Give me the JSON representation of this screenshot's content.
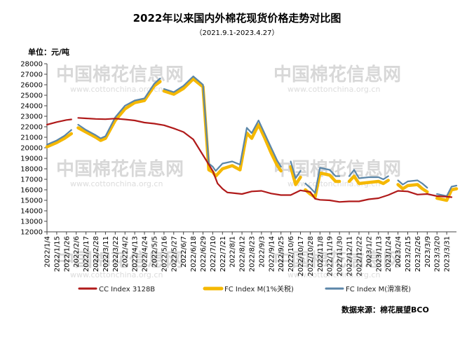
{
  "chart_data": {
    "type": "line",
    "title": "2022年以来国内外棉花现货价格走势对比图",
    "subtitle": "（2021.9.1-2023.4.27）",
    "unit_label": "单位：元/吨",
    "source": "数据来源：棉花展望BCO",
    "watermark": {
      "cn": "中国棉花信息网",
      "url": "www.cottonchina.org.cn"
    },
    "ylim": [
      12000,
      28000
    ],
    "y_ticks": [
      12000,
      13000,
      14000,
      15000,
      16000,
      17000,
      18000,
      19000,
      20000,
      21000,
      22000,
      23000,
      24000,
      25000,
      26000,
      27000,
      28000
    ],
    "x_tick_labels": [
      "2022/1/4",
      "2022/1/15",
      "2022/1/26",
      "2022/2/6",
      "2022/2/17",
      "2022/2/28",
      "2022/3/11",
      "2022/3/22",
      "2022/4/2",
      "2022/4/13",
      "2022/4/24",
      "2022/5/5",
      "2022/5/16",
      "2022/5/27",
      "2022/6/7",
      "2022/6/18",
      "2022/6/29",
      "2022/7/10",
      "2022/7/21",
      "2022/8/1",
      "2022/8/12",
      "2022/8/23",
      "2022/9/3",
      "2022/9/14",
      "2022/9/25",
      "2022/10/6",
      "2022/10/17",
      "2022/10/28",
      "2022/11/8",
      "2022/11/19",
      "2022/11/30",
      "2022/12/11",
      "2022/12/22",
      "2023/1/2",
      "2023/1/13",
      "2023/1/24",
      "2023/2/4",
      "2023/2/15",
      "2023/2/26",
      "2023/3/9",
      "2023/3/20",
      "2023/3/31"
    ],
    "x_end_index": 42,
    "legend_position": "bottom",
    "series": [
      {
        "name": "CC Index 3128B",
        "color": "#b01a1a",
        "points": [
          [
            0,
            22200
          ],
          [
            1,
            22450
          ],
          [
            2,
            22650
          ],
          [
            2.5,
            22700
          ],
          [
            3.2,
            22850
          ],
          [
            4,
            22800
          ],
          [
            5,
            22750
          ],
          [
            6,
            22720
          ],
          [
            7,
            22780
          ],
          [
            8,
            22700
          ],
          [
            9,
            22600
          ],
          [
            10,
            22400
          ],
          [
            11,
            22300
          ],
          [
            12,
            22150
          ],
          [
            13,
            21850
          ],
          [
            14,
            21500
          ],
          [
            15,
            20800
          ],
          [
            16,
            19300
          ],
          [
            17,
            17800
          ],
          [
            17.5,
            16600
          ],
          [
            18,
            16100
          ],
          [
            18.5,
            15750
          ],
          [
            19,
            15700
          ],
          [
            20,
            15600
          ],
          [
            21,
            15850
          ],
          [
            22,
            15900
          ],
          [
            23,
            15650
          ],
          [
            24,
            15500
          ],
          [
            25,
            15500
          ],
          [
            26,
            15950
          ],
          [
            27,
            15800
          ],
          [
            27.5,
            15150
          ],
          [
            28,
            15050
          ],
          [
            29,
            15000
          ],
          [
            30,
            14850
          ],
          [
            31,
            14900
          ],
          [
            32,
            14900
          ],
          [
            33,
            15100
          ],
          [
            34,
            15200
          ],
          [
            35,
            15500
          ],
          [
            36,
            15900
          ],
          [
            37,
            15850
          ],
          [
            38,
            15550
          ],
          [
            39,
            15600
          ],
          [
            40,
            15400
          ],
          [
            41,
            15350
          ],
          [
            41.5,
            15300
          ]
        ]
      },
      {
        "name": "FC Index M(1%关税)",
        "color": "#f5b800",
        "points": [
          [
            0,
            20100
          ],
          [
            1,
            20500
          ],
          [
            1.8,
            20900
          ],
          [
            2.5,
            21350
          ],
          [
            3.2,
            21900
          ],
          [
            4,
            21500
          ],
          [
            5,
            21000
          ],
          [
            5.5,
            20700
          ],
          [
            6,
            20900
          ],
          [
            7,
            22600
          ],
          [
            8,
            23700
          ],
          [
            9,
            24300
          ],
          [
            10,
            24500
          ],
          [
            11,
            25900
          ],
          [
            11.6,
            26300
          ],
          [
            12,
            25400
          ],
          [
            13,
            25100
          ],
          [
            14,
            25650
          ],
          [
            15,
            26550
          ],
          [
            16,
            25800
          ],
          [
            16.6,
            17900
          ],
          [
            17,
            17700
          ],
          [
            17.3,
            17300
          ],
          [
            18,
            18000
          ],
          [
            19,
            18300
          ],
          [
            19.8,
            17900
          ],
          [
            20.5,
            21400
          ],
          [
            21,
            20900
          ],
          [
            21.7,
            22200
          ],
          [
            22.3,
            21000
          ],
          [
            23,
            19500
          ],
          [
            23.6,
            18350
          ],
          [
            24,
            17800
          ],
          [
            25,
            18200
          ],
          [
            25.5,
            16500
          ],
          [
            26,
            17200
          ],
          [
            26.5,
            16000
          ],
          [
            27,
            15600
          ],
          [
            27.5,
            15300
          ],
          [
            28,
            17600
          ],
          [
            29,
            17400
          ],
          [
            29.6,
            16800
          ],
          [
            30,
            16800
          ],
          [
            31,
            16800
          ],
          [
            31.5,
            17300
          ],
          [
            32,
            16600
          ],
          [
            33,
            16700
          ],
          [
            34,
            16800
          ],
          [
            34.5,
            16600
          ],
          [
            35,
            16900
          ],
          [
            36,
            16500
          ],
          [
            36.5,
            16100
          ],
          [
            37,
            16400
          ],
          [
            38,
            16500
          ],
          [
            38.5,
            16100
          ],
          [
            39,
            15800
          ],
          [
            40,
            15200
          ],
          [
            41,
            15000
          ],
          [
            41.5,
            16000
          ],
          [
            42,
            16100
          ]
        ]
      },
      {
        "name": "FC Index M(滑准税)",
        "color": "#5b86a8",
        "points": [
          [
            0,
            20300
          ],
          [
            1,
            20700
          ],
          [
            1.8,
            21150
          ],
          [
            2.5,
            21700
          ],
          [
            3.2,
            22200
          ],
          [
            4,
            21700
          ],
          [
            5,
            21200
          ],
          [
            5.5,
            20900
          ],
          [
            6,
            21100
          ],
          [
            7,
            22900
          ],
          [
            8,
            24000
          ],
          [
            9,
            24500
          ],
          [
            10,
            24700
          ],
          [
            11,
            26100
          ],
          [
            11.6,
            26600
          ],
          [
            12,
            25600
          ],
          [
            13,
            25300
          ],
          [
            14,
            25900
          ],
          [
            15,
            26800
          ],
          [
            16,
            26000
          ],
          [
            16.6,
            18500
          ],
          [
            17,
            18200
          ],
          [
            17.3,
            17800
          ],
          [
            18,
            18500
          ],
          [
            19,
            18700
          ],
          [
            19.8,
            18400
          ],
          [
            20.5,
            21900
          ],
          [
            21,
            21400
          ],
          [
            21.7,
            22600
          ],
          [
            22.3,
            21400
          ],
          [
            23,
            20000
          ],
          [
            23.6,
            18800
          ],
          [
            24,
            18200
          ],
          [
            25,
            18700
          ],
          [
            25.5,
            17100
          ],
          [
            26,
            17800
          ],
          [
            26.5,
            16600
          ],
          [
            27,
            16200
          ],
          [
            27.5,
            15700
          ],
          [
            28,
            18100
          ],
          [
            29,
            17900
          ],
          [
            29.6,
            17300
          ],
          [
            30,
            17300
          ],
          [
            31,
            17300
          ],
          [
            31.5,
            17900
          ],
          [
            32,
            17100
          ],
          [
            33,
            17200
          ],
          [
            34,
            17200
          ],
          [
            34.5,
            17000
          ],
          [
            35,
            17300
          ],
          [
            36,
            16900
          ],
          [
            36.5,
            16500
          ],
          [
            37,
            16800
          ],
          [
            38,
            16900
          ],
          [
            38.5,
            16600
          ],
          [
            39,
            16200
          ],
          [
            40,
            15600
          ],
          [
            41,
            15400
          ],
          [
            41.5,
            16300
          ],
          [
            42,
            16400
          ]
        ]
      }
    ]
  }
}
